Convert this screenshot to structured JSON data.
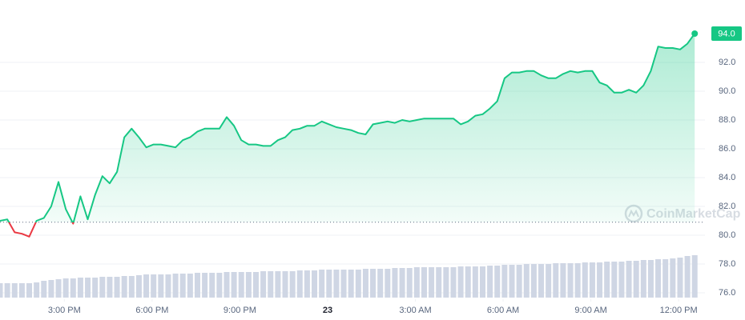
{
  "chart_data": {
    "type": "line",
    "color": "#16c784",
    "down_color": "#ea3943",
    "baseline": 80.9,
    "grid": true,
    "x": [
      12.8,
      13.05,
      13.3,
      13.55,
      13.8,
      14.05,
      14.3,
      14.55,
      14.8,
      15.05,
      15.3,
      15.55,
      15.8,
      16.05,
      16.3,
      16.55,
      16.8,
      17.05,
      17.3,
      17.55,
      17.8,
      18.05,
      18.3,
      18.55,
      18.8,
      19.05,
      19.3,
      19.55,
      19.8,
      20.05,
      20.3,
      20.55,
      20.8,
      21.05,
      21.3,
      21.55,
      21.8,
      22.05,
      22.3,
      22.55,
      22.8,
      23.05,
      23.3,
      23.55,
      23.8,
      24.05,
      24.3,
      24.55,
      24.8,
      25.05,
      25.3,
      25.55,
      25.8,
      26.05,
      26.3,
      26.55,
      26.8,
      27.05,
      27.3,
      27.55,
      27.8,
      28.05,
      28.3,
      28.55,
      28.8,
      29.05,
      29.3,
      29.55,
      29.8,
      30.05,
      30.3,
      30.55,
      30.8,
      31.05,
      31.3,
      31.55,
      31.8,
      32.05,
      32.3,
      32.55,
      32.8,
      33.05,
      33.3,
      33.55,
      33.8,
      34.05,
      34.3,
      34.55,
      34.8,
      35.05,
      35.3,
      35.55,
      35.8,
      36.05,
      36.3,
      36.55
    ],
    "values": [
      81.0,
      81.1,
      80.2,
      80.1,
      79.9,
      81.0,
      81.2,
      82.0,
      83.7,
      81.8,
      80.8,
      82.7,
      81.1,
      82.8,
      84.1,
      83.6,
      84.4,
      86.8,
      87.4,
      86.8,
      86.1,
      86.3,
      86.3,
      86.2,
      86.1,
      86.6,
      86.8,
      87.2,
      87.4,
      87.4,
      87.4,
      88.2,
      87.6,
      86.6,
      86.3,
      86.3,
      86.2,
      86.2,
      86.6,
      86.8,
      87.3,
      87.4,
      87.6,
      87.6,
      87.9,
      87.7,
      87.5,
      87.4,
      87.3,
      87.1,
      87.0,
      87.7,
      87.8,
      87.9,
      87.8,
      88.0,
      87.9,
      88.0,
      88.1,
      88.1,
      88.1,
      88.1,
      88.1,
      87.7,
      87.9,
      88.3,
      88.4,
      88.8,
      89.3,
      90.9,
      91.3,
      91.3,
      91.4,
      91.4,
      91.1,
      90.9,
      90.9,
      91.2,
      91.4,
      91.3,
      91.4,
      91.4,
      90.6,
      90.4,
      89.9,
      89.9,
      90.1,
      89.9,
      90.4,
      91.4,
      93.1,
      93.0,
      93.0,
      92.9,
      93.3,
      94.0
    ],
    "volume": [
      18,
      18,
      18,
      18,
      18,
      19,
      21,
      22,
      23,
      24,
      24,
      25,
      25,
      25,
      26,
      26,
      26,
      27,
      27,
      28,
      29,
      29,
      29,
      29,
      30,
      30,
      30,
      31,
      31,
      31,
      31,
      32,
      32,
      32,
      32,
      32,
      33,
      33,
      33,
      33,
      33,
      34,
      34,
      34,
      35,
      35,
      35,
      35,
      35,
      35,
      36,
      36,
      36,
      36,
      37,
      37,
      37,
      38,
      38,
      38,
      38,
      38,
      38,
      39,
      39,
      39,
      39,
      40,
      40,
      41,
      41,
      41,
      42,
      42,
      42,
      42,
      43,
      43,
      43,
      43,
      44,
      44,
      44,
      45,
      45,
      45,
      46,
      46,
      47,
      47,
      48,
      48,
      49,
      50,
      52,
      53
    ],
    "volume_color": "#cfd6e4",
    "xlim": [
      12.8,
      36.9
    ],
    "xticks": [
      {
        "value": 15,
        "label": "3:00 PM"
      },
      {
        "value": 18,
        "label": "6:00 PM"
      },
      {
        "value": 21,
        "label": "9:00 PM"
      },
      {
        "value": 24,
        "label": "23"
      },
      {
        "value": 27,
        "label": "3:00 AM"
      },
      {
        "value": 30,
        "label": "6:00 AM"
      },
      {
        "value": 33,
        "label": "9:00 AM"
      },
      {
        "value": 36,
        "label": "12:00 PM"
      }
    ],
    "ylim": [
      75.6,
      96
    ],
    "yticks": [
      {
        "value": 76,
        "label": "76.0"
      },
      {
        "value": 78,
        "label": "78.0"
      },
      {
        "value": 80,
        "label": "80.0"
      },
      {
        "value": 82,
        "label": "82.0"
      },
      {
        "value": 84,
        "label": "84.0"
      },
      {
        "value": 86,
        "label": "86.0"
      },
      {
        "value": 88,
        "label": "88.0"
      },
      {
        "value": 90,
        "label": "90.0"
      },
      {
        "value": 92,
        "label": "92.0"
      }
    ],
    "price_tag": {
      "value": 94,
      "label": "94.0"
    },
    "watermark": "CoinMarketCap"
  }
}
